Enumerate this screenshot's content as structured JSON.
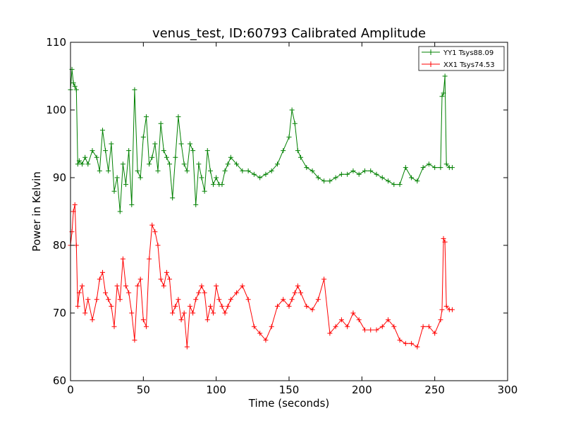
{
  "chart_data": {
    "type": "line",
    "title": "venus_test, ID:60793 Calibrated Amplitude",
    "xlabel": "Time (seconds)",
    "ylabel": "Power in Kelvin",
    "xlim": [
      0,
      300
    ],
    "ylim": [
      60,
      110
    ],
    "xticks": [
      "0",
      "50",
      "100",
      "150",
      "200",
      "250",
      "300"
    ],
    "yticks": [
      "60",
      "70",
      "80",
      "90",
      "100",
      "110"
    ],
    "grid": false,
    "legend_position": "top-right",
    "marker": "+",
    "series": [
      {
        "name": "YY1 Tsys88.09",
        "color": "#008000",
        "x": [
          0,
          1,
          2,
          3,
          4,
          5,
          6,
          8,
          10,
          12,
          15,
          18,
          20,
          22,
          24,
          26,
          28,
          30,
          32,
          34,
          36,
          38,
          40,
          42,
          44,
          46,
          48,
          50,
          52,
          54,
          56,
          58,
          60,
          62,
          64,
          66,
          68,
          70,
          72,
          74,
          76,
          78,
          80,
          82,
          84,
          86,
          88,
          90,
          92,
          94,
          96,
          98,
          100,
          102,
          104,
          106,
          108,
          110,
          114,
          118,
          122,
          126,
          130,
          134,
          138,
          142,
          146,
          150,
          152,
          154,
          156,
          158,
          162,
          166,
          170,
          174,
          178,
          182,
          186,
          190,
          194,
          198,
          202,
          206,
          210,
          214,
          218,
          222,
          226,
          230,
          234,
          238,
          242,
          246,
          250,
          254,
          255,
          256,
          257,
          258,
          260,
          262
        ],
        "y": [
          103,
          106,
          104,
          103.5,
          103,
          92,
          92.5,
          92,
          93,
          92,
          94,
          93,
          91,
          97,
          94,
          91,
          95,
          88,
          90,
          85,
          92,
          89,
          94,
          86,
          103,
          91,
          90,
          96,
          99,
          92,
          93,
          95,
          91,
          98,
          94,
          93,
          92,
          87,
          93,
          99,
          95,
          92,
          91,
          95,
          94,
          86,
          92,
          90,
          88,
          94,
          91,
          89,
          90,
          89,
          89,
          91,
          92,
          93,
          92,
          91,
          91,
          90.5,
          90,
          90.5,
          91,
          92,
          94,
          96,
          100,
          98,
          94,
          93,
          91.5,
          91,
          90,
          89.5,
          89.5,
          90,
          90.5,
          90.5,
          91,
          90.5,
          91,
          91,
          90.5,
          90,
          89.5,
          89,
          89,
          91.5,
          90,
          89.5,
          91.5,
          92,
          91.5,
          91.5,
          102,
          102.5,
          105,
          92,
          91.5,
          91.5
        ]
      },
      {
        "name": "XX1 Tsys74.53",
        "color": "#ff0000",
        "x": [
          0,
          1,
          2,
          3,
          4,
          5,
          6,
          8,
          10,
          12,
          15,
          18,
          20,
          22,
          24,
          26,
          28,
          30,
          32,
          34,
          36,
          38,
          40,
          42,
          44,
          46,
          48,
          50,
          52,
          54,
          56,
          58,
          60,
          62,
          64,
          66,
          68,
          70,
          72,
          74,
          76,
          78,
          80,
          82,
          84,
          86,
          88,
          90,
          92,
          94,
          96,
          98,
          100,
          102,
          104,
          106,
          108,
          110,
          114,
          118,
          122,
          126,
          130,
          134,
          138,
          142,
          146,
          150,
          152,
          154,
          156,
          158,
          162,
          166,
          170,
          174,
          178,
          182,
          186,
          190,
          194,
          198,
          202,
          206,
          210,
          214,
          218,
          222,
          226,
          230,
          234,
          238,
          242,
          246,
          250,
          254,
          255,
          256,
          257,
          258,
          260,
          262
        ],
        "y": [
          80,
          82,
          85,
          86,
          80,
          71,
          73,
          74,
          70,
          72,
          69,
          72,
          75,
          76,
          73,
          72,
          71,
          68,
          74,
          72,
          78,
          74,
          73,
          70,
          66,
          74,
          75,
          69,
          68,
          78,
          83,
          82,
          80,
          75,
          74,
          76,
          75,
          70,
          71,
          72,
          69,
          70,
          65,
          71,
          70,
          72,
          73,
          74,
          73,
          69,
          71,
          70,
          74,
          72,
          71,
          70,
          71,
          72,
          73,
          74,
          72,
          68,
          67,
          66,
          68,
          71,
          72,
          71,
          72,
          73,
          74,
          73,
          71,
          70.5,
          72,
          75,
          67,
          68,
          69,
          68,
          70,
          69,
          67.5,
          67.5,
          67.5,
          68,
          69,
          68,
          66,
          65.5,
          65.5,
          65,
          68,
          68,
          67,
          69,
          70.5,
          81,
          80.5,
          71,
          70.5,
          70.5
        ]
      }
    ]
  }
}
